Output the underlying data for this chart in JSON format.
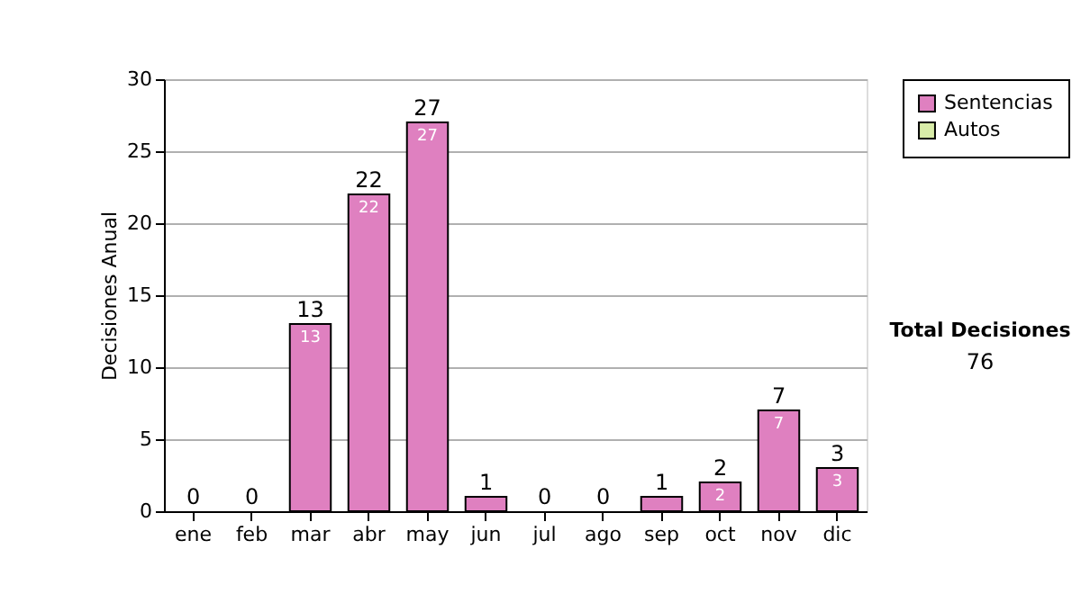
{
  "chart_data": {
    "type": "bar",
    "ylabel": "Decisiones Anual",
    "categories": [
      "ene",
      "feb",
      "mar",
      "abr",
      "may",
      "jun",
      "jul",
      "ago",
      "sep",
      "oct",
      "nov",
      "dic"
    ],
    "series": [
      {
        "name": "Sentencias",
        "color": "#df80c0",
        "values": [
          0,
          0,
          13,
          22,
          27,
          1,
          0,
          0,
          1,
          2,
          7,
          3
        ],
        "value_labels": [
          null,
          null,
          "13",
          "22",
          "27",
          null,
          null,
          null,
          null,
          "2",
          "7",
          "3"
        ]
      },
      {
        "name": "Autos",
        "color": "#d8eca8",
        "values": [
          0,
          0,
          0,
          0,
          0,
          0,
          0,
          0,
          0,
          0,
          0,
          0
        ]
      }
    ],
    "totals": [
      "0",
      "0",
      "13",
      "22",
      "27",
      "1",
      "0",
      "0",
      "1",
      "2",
      "7",
      "3"
    ],
    "ylim": [
      0,
      30
    ],
    "yticks": [
      0,
      5,
      10,
      15,
      20,
      25,
      30
    ],
    "grid": "y",
    "legend": "right",
    "annotations": [
      "Total Decisiones",
      "76"
    ]
  }
}
